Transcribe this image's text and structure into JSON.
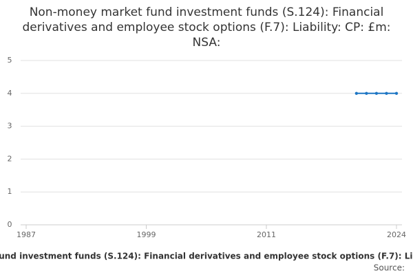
{
  "chart_data": {
    "type": "line",
    "title": "Non-money market fund investment funds (S.124): Financial derivatives and employee stock options (F.7): Liability: CP: £m: NSA:",
    "x": [
      2020,
      2021,
      2022,
      2023,
      2024
    ],
    "series": [
      {
        "name": "Non-money market fund investment funds (S.124): Financial derivatives and employee stock options (F.7): Liability: CP: £m: NSA:",
        "color": "#1f77c4",
        "values": [
          4,
          4,
          4,
          4,
          4
        ]
      }
    ],
    "xlim": [
      1987,
      2024
    ],
    "xticks": [
      1987,
      1999,
      2011,
      2024
    ],
    "ylim": [
      0,
      5
    ],
    "yticks": [
      0,
      1,
      2,
      3,
      4,
      5
    ],
    "grid": true,
    "source": "Source:"
  }
}
